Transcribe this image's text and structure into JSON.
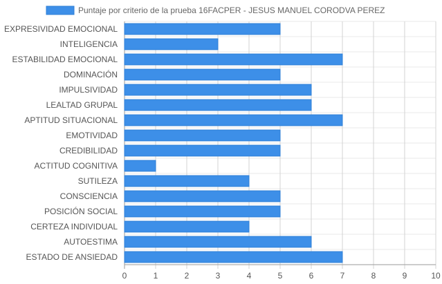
{
  "chart_data": {
    "type": "bar",
    "orientation": "horizontal",
    "categories": [
      "EXPRESIVIDAD EMOCIONAL",
      "INTELIGENCIA",
      "ESTABILIDAD EMOCIONAL",
      "DOMINACIÓN",
      "IMPULSIVIDAD",
      "LEALTAD GRUPAL",
      "APTITUD SITUACIONAL",
      "EMOTIVIDAD",
      "CREDIBILIDAD",
      "ACTITUD COGNITIVA",
      "SUTILEZA",
      "CONSCIENCIA",
      "POSICIÓN SOCIAL",
      "CERTEZA INDIVIDUAL",
      "AUTOESTIMA",
      "ESTADO DE ANSIEDAD"
    ],
    "series": [
      {
        "name": "Puntaje por criterio de la prueba 16FACPER - JESUS MANUEL CORODVA PEREZ",
        "values": [
          5,
          3,
          7,
          5,
          6,
          6,
          7,
          5,
          5,
          1,
          4,
          5,
          5,
          4,
          6,
          7
        ],
        "color": "#3d8fe8",
        "border_color": "#2f7fd6"
      }
    ],
    "xlim": [
      0,
      10
    ],
    "x_ticks": [
      "0",
      "1",
      "2",
      "3",
      "4",
      "5",
      "6",
      "7",
      "8",
      "9",
      "10"
    ],
    "grid": true,
    "legend_position": "top-center",
    "title": "",
    "xlabel": "",
    "ylabel": ""
  }
}
